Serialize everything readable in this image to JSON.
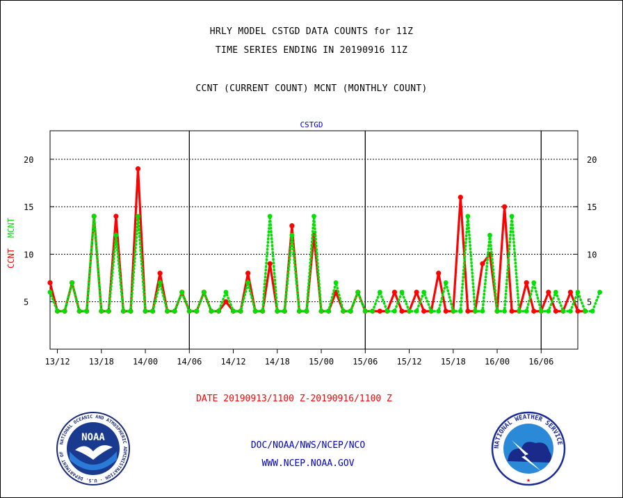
{
  "header": {
    "title_line1": "HRLY MODEL CSTGD DATA COUNTS for 11Z",
    "title_line2": "TIME SERIES ENDING IN 20190916 11Z",
    "subtitle": "CCNT (CURRENT COUNT) MCNT (MONTHLY COUNT)"
  },
  "colors": {
    "ccnt": "#ff0000",
    "mcnt": "#00e000",
    "footer": "#0000cc",
    "grid": "#000000"
  },
  "ylabel": {
    "ccnt": "CCNT",
    "mcnt": "MCNT"
  },
  "date_range": "DATE 20190913/1100 Z-20190916/1100 Z",
  "footer": {
    "org": "DOC/NOAA/NWS/NCEP/NCO",
    "url": "WWW.NCEP.NOAA.GOV"
  },
  "logos": {
    "left": {
      "icon": "noaa-seal-icon",
      "text": "NOAA",
      "ring_text": "NATIONAL OCEANIC AND ATMOSPHERIC ADMINISTRATION · U.S. DEPARTMENT OF COMMERCE"
    },
    "right": {
      "icon": "nws-seal-icon",
      "ring_text": "NATIONAL WEATHER SERVICE"
    }
  },
  "chart_data": {
    "type": "line",
    "title": "CSTGD",
    "xlim": [
      0,
      72
    ],
    "ylim": [
      0,
      23
    ],
    "yticks": [
      5,
      10,
      15,
      20
    ],
    "gridlines_y": [
      5,
      10,
      15,
      20
    ],
    "day_boundaries_x": [
      19,
      43,
      67
    ],
    "xtick_positions": [
      1,
      7,
      13,
      19,
      25,
      31,
      37,
      43,
      49,
      55,
      61,
      67
    ],
    "xtick_labels": [
      "13/12",
      "13/18",
      "14/00",
      "14/06",
      "14/12",
      "14/18",
      "15/00",
      "15/06",
      "15/12",
      "15/18",
      "16/00",
      "16/06"
    ],
    "series": [
      {
        "name": "CCNT",
        "color": "#ff0000",
        "style": "solid",
        "values": [
          7,
          4,
          4,
          7,
          4,
          4,
          14,
          4,
          4,
          14,
          4,
          4,
          19,
          4,
          4,
          8,
          4,
          4,
          6,
          4,
          4,
          6,
          4,
          4,
          5,
          4,
          4,
          8,
          4,
          4,
          9,
          4,
          4,
          13,
          4,
          4,
          12,
          4,
          4,
          6,
          4,
          4,
          6,
          4,
          4,
          4,
          4,
          6,
          4,
          4,
          6,
          4,
          4,
          8,
          4,
          4,
          16,
          4,
          4,
          9,
          10,
          4,
          15,
          4,
          4,
          7,
          4,
          4,
          6,
          4,
          4,
          6,
          4,
          4
        ]
      },
      {
        "name": "MCNT",
        "color": "#00e000",
        "style": "dotted",
        "values": [
          6,
          4,
          4,
          7,
          4,
          4,
          14,
          4,
          4,
          12,
          4,
          4,
          14,
          4,
          4,
          7,
          4,
          4,
          6,
          4,
          4,
          6,
          4,
          4,
          6,
          4,
          4,
          7,
          4,
          4,
          14,
          4,
          4,
          12,
          4,
          4,
          14,
          4,
          4,
          7,
          4,
          4,
          6,
          4,
          4,
          6,
          4,
          4,
          6,
          4,
          4,
          6,
          4,
          4,
          7,
          4,
          4,
          14,
          4,
          4,
          12,
          4,
          4,
          14,
          4,
          4,
          7,
          4,
          4,
          6,
          4,
          4,
          6,
          4,
          4,
          6
        ]
      }
    ]
  }
}
